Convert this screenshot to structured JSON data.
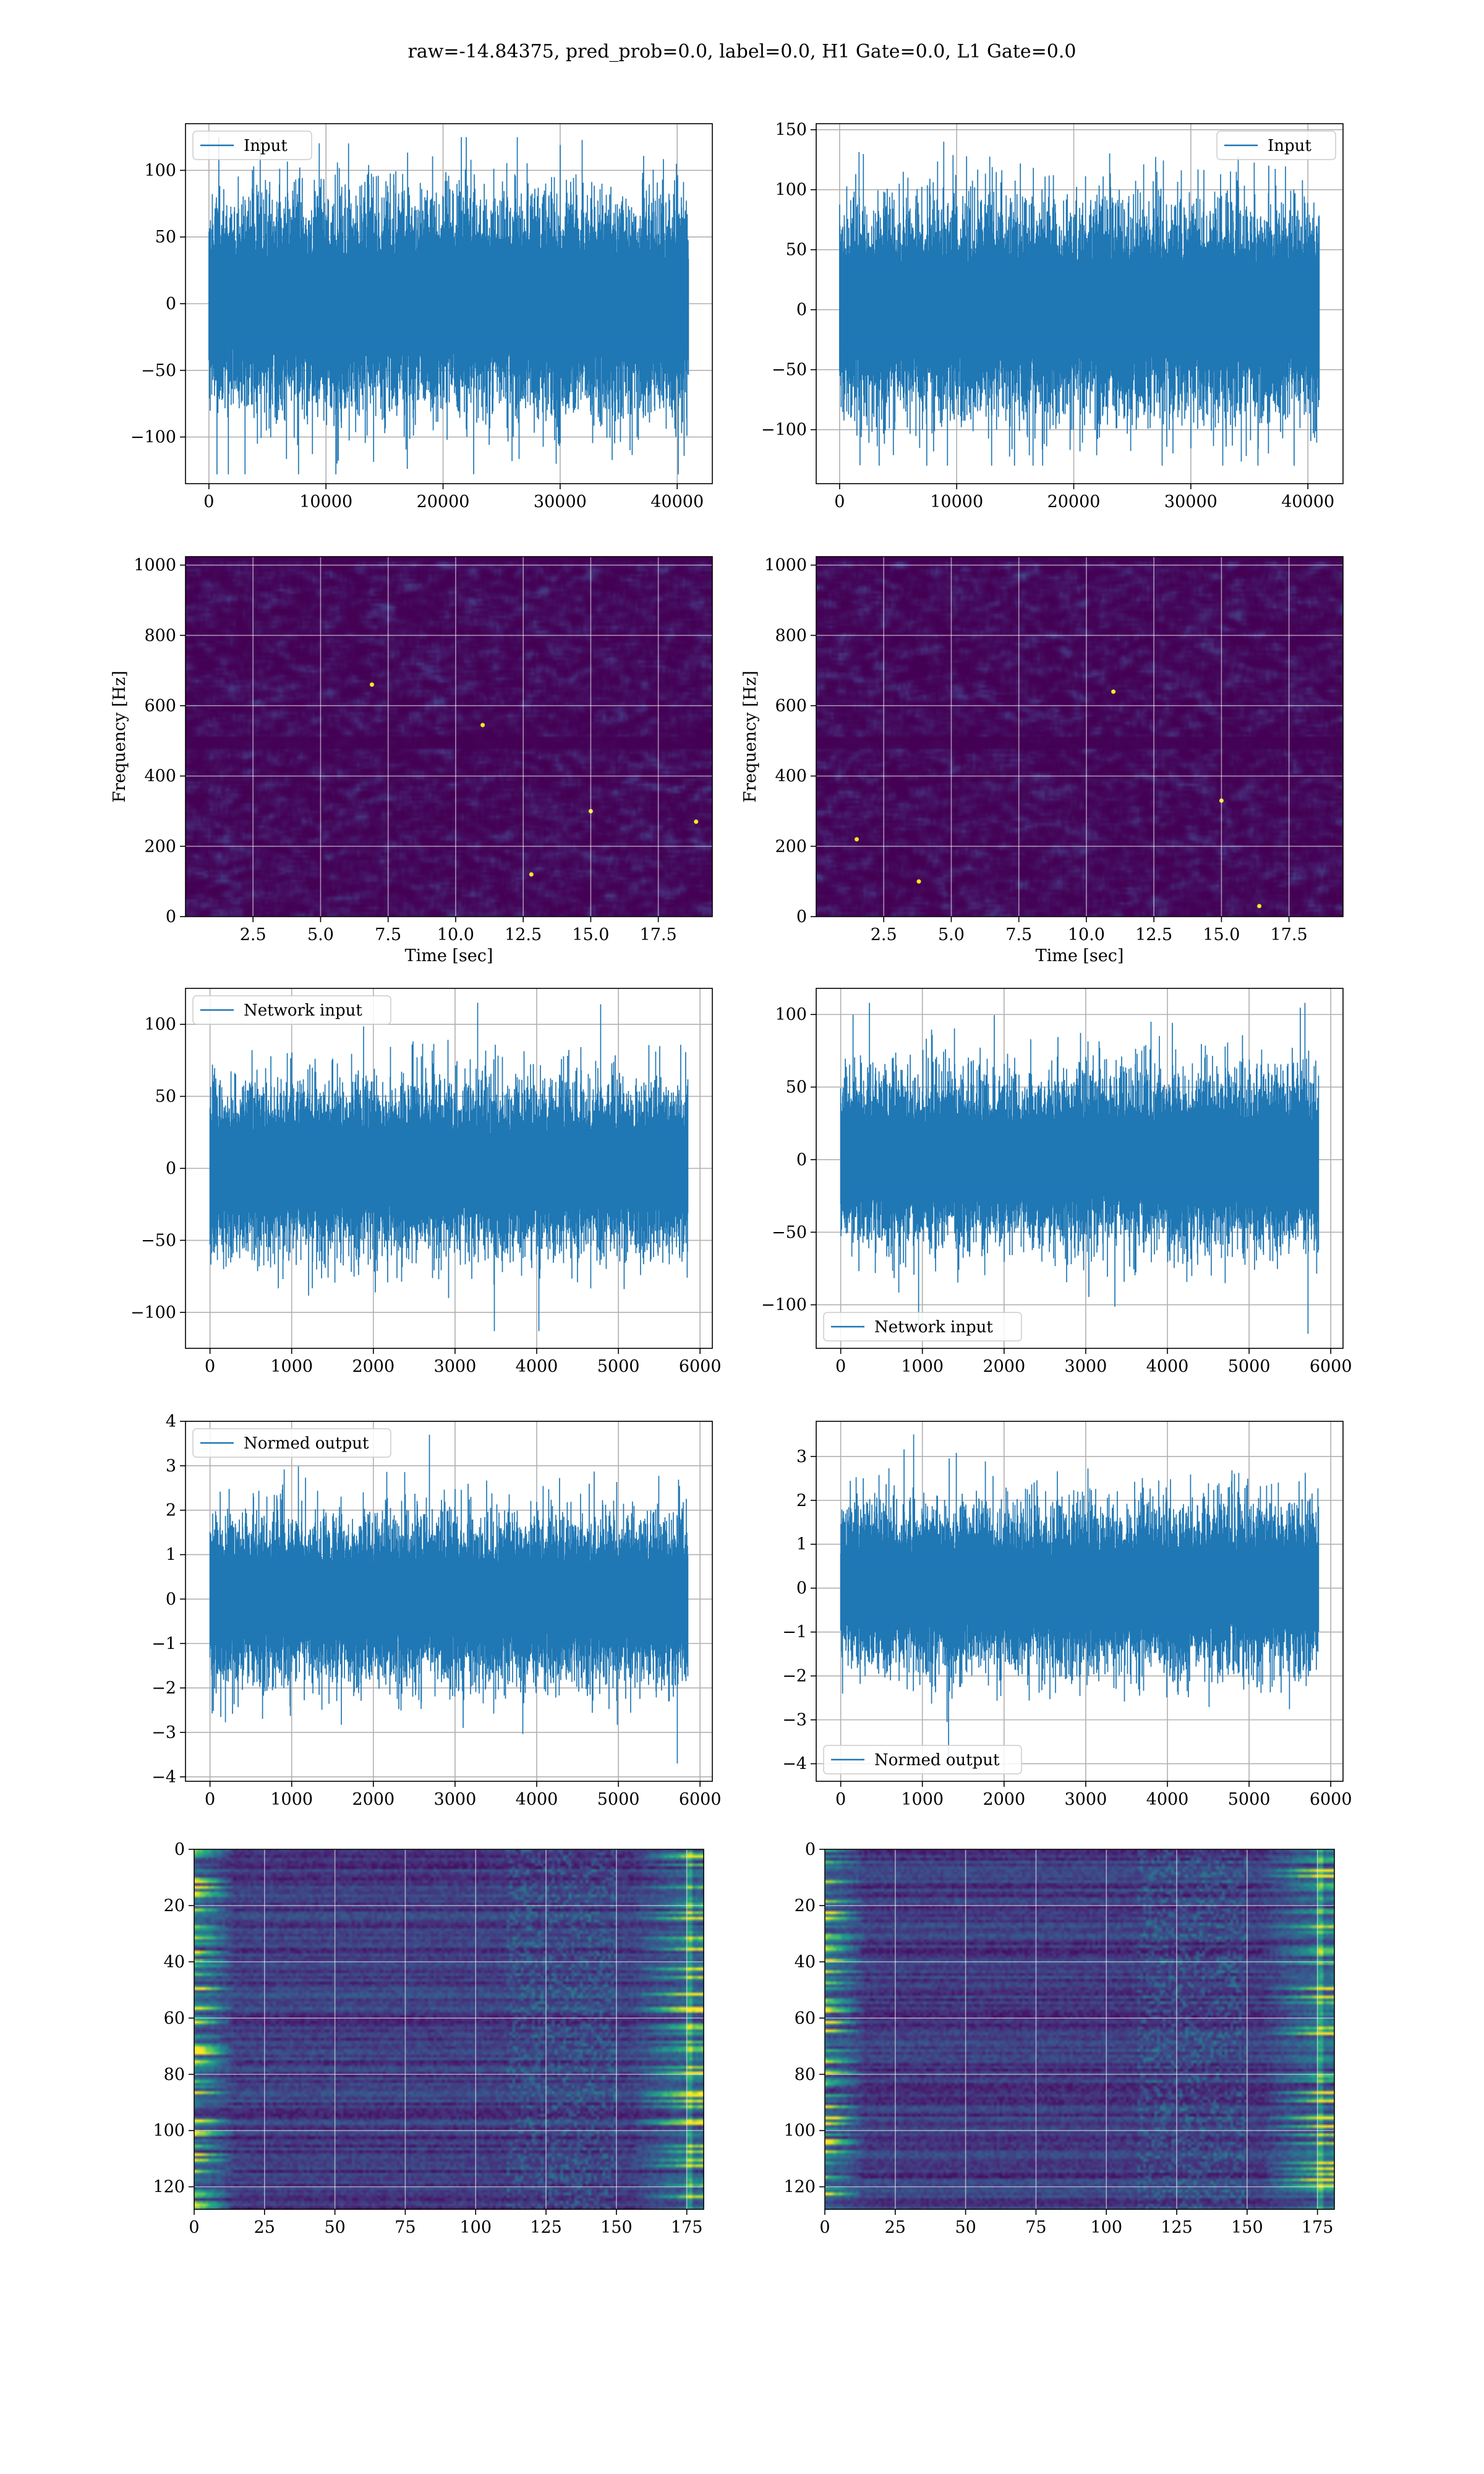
{
  "figure": {
    "suptitle": "raw=-14.84375, pred_prob=0.0, label=0.0, H1 Gate=0.0, L1 Gate=0.0"
  },
  "colors": {
    "series": "#1f77b4",
    "grid": "#b0b0b0",
    "viridis_dark": "#440154",
    "viridis_mid": "#3b528b",
    "viridis_teal": "#21918c",
    "viridis_green": "#5ec962",
    "viridis_yellow": "#fde725"
  },
  "chart_data": [
    {
      "id": "row1-left",
      "type": "line",
      "title": "",
      "xlabel": "",
      "ylabel": "",
      "series": [
        {
          "name": "Input",
          "x_range": [
            0,
            40960
          ],
          "envelope_typical": [
            -70,
            70
          ],
          "peaks_max": 125,
          "peaks_min": -128
        }
      ],
      "legend": "top-left",
      "grid": true,
      "xlim": [
        -2000,
        43000
      ],
      "ylim": [
        -135,
        135
      ],
      "xticks": [
        0,
        10000,
        20000,
        30000,
        40000
      ],
      "xtick_labels": [
        "0",
        "10000",
        "20000",
        "30000",
        "40000"
      ],
      "yticks": [
        -100,
        -50,
        0,
        50,
        100
      ],
      "ytick_labels": [
        "−100",
        "−50",
        "0",
        "50",
        "100"
      ]
    },
    {
      "id": "row1-right",
      "type": "line",
      "title": "",
      "xlabel": "",
      "ylabel": "",
      "series": [
        {
          "name": "Input",
          "x_range": [
            0,
            40960
          ],
          "envelope_typical": [
            -75,
            75
          ],
          "peaks_max": 140,
          "peaks_min": -130
        }
      ],
      "legend": "top-right",
      "grid": true,
      "xlim": [
        -2000,
        43000
      ],
      "ylim": [
        -145,
        155
      ],
      "xticks": [
        0,
        10000,
        20000,
        30000,
        40000
      ],
      "xtick_labels": [
        "0",
        "10000",
        "20000",
        "30000",
        "40000"
      ],
      "yticks": [
        -100,
        -50,
        0,
        50,
        100,
        150
      ],
      "ytick_labels": [
        "−100",
        "−50",
        "0",
        "50",
        "100",
        "150"
      ]
    },
    {
      "id": "row2-left",
      "type": "heatmap",
      "title": "",
      "xlabel": "Time [sec]",
      "ylabel": "Frequency [Hz]",
      "grid": true,
      "colormap": "viridis",
      "xlim": [
        0,
        19.5
      ],
      "ylim": [
        0,
        1024
      ],
      "xticks": [
        2.5,
        5.0,
        7.5,
        10.0,
        12.5,
        15.0,
        17.5
      ],
      "xtick_labels": [
        "2.5",
        "5.0",
        "7.5",
        "10.0",
        "12.5",
        "15.0",
        "17.5"
      ],
      "yticks": [
        0,
        200,
        400,
        600,
        800,
        1000
      ],
      "ytick_labels": [
        "0",
        "200",
        "400",
        "600",
        "800",
        "1000"
      ],
      "dark_band_hz": 500,
      "hot_spots": [
        {
          "t": 12.8,
          "f": 120
        },
        {
          "t": 6.9,
          "f": 660
        },
        {
          "t": 11.0,
          "f": 545
        },
        {
          "t": 18.9,
          "f": 270
        },
        {
          "t": 15.0,
          "f": 300
        }
      ]
    },
    {
      "id": "row2-right",
      "type": "heatmap",
      "title": "",
      "xlabel": "Time [sec]",
      "ylabel": "Frequency [Hz]",
      "grid": true,
      "colormap": "viridis",
      "xlim": [
        0,
        19.5
      ],
      "ylim": [
        0,
        1024
      ],
      "xticks": [
        2.5,
        5.0,
        7.5,
        10.0,
        12.5,
        15.0,
        17.5
      ],
      "xtick_labels": [
        "2.5",
        "5.0",
        "7.5",
        "10.0",
        "12.5",
        "15.0",
        "17.5"
      ],
      "yticks": [
        0,
        200,
        400,
        600,
        800,
        1000
      ],
      "ytick_labels": [
        "0",
        "200",
        "400",
        "600",
        "800",
        "1000"
      ],
      "dark_band_hz": 500,
      "hot_spots": [
        {
          "t": 16.4,
          "f": 30
        },
        {
          "t": 1.5,
          "f": 220
        },
        {
          "t": 3.8,
          "f": 100
        },
        {
          "t": 15.0,
          "f": 330
        },
        {
          "t": 11.0,
          "f": 640
        }
      ]
    },
    {
      "id": "row3-left",
      "type": "line",
      "title": "",
      "xlabel": "",
      "ylabel": "",
      "series": [
        {
          "name": "Network input",
          "x_range": [
            0,
            5850
          ],
          "envelope_typical": [
            -50,
            50
          ],
          "peaks_max": 115,
          "peaks_min": -113
        }
      ],
      "legend": "top-left",
      "grid": true,
      "xlim": [
        -300,
        6150
      ],
      "ylim": [
        -125,
        125
      ],
      "xticks": [
        0,
        1000,
        2000,
        3000,
        4000,
        5000,
        6000
      ],
      "xtick_labels": [
        "0",
        "1000",
        "2000",
        "3000",
        "4000",
        "5000",
        "6000"
      ],
      "yticks": [
        -100,
        -50,
        0,
        50,
        100
      ],
      "ytick_labels": [
        "−100",
        "−50",
        "0",
        "50",
        "100"
      ]
    },
    {
      "id": "row3-right",
      "type": "line",
      "title": "",
      "xlabel": "",
      "ylabel": "",
      "series": [
        {
          "name": "Network input",
          "x_range": [
            0,
            5850
          ],
          "envelope_typical": [
            -50,
            50
          ],
          "peaks_max": 108,
          "peaks_min": -120
        }
      ],
      "legend": "bottom-left",
      "grid": true,
      "xlim": [
        -300,
        6150
      ],
      "ylim": [
        -130,
        118
      ],
      "xticks": [
        0,
        1000,
        2000,
        3000,
        4000,
        5000,
        6000
      ],
      "xtick_labels": [
        "0",
        "1000",
        "2000",
        "3000",
        "4000",
        "5000",
        "6000"
      ],
      "yticks": [
        -100,
        -50,
        0,
        50,
        100
      ],
      "ytick_labels": [
        "−100",
        "−50",
        "0",
        "50",
        "100"
      ]
    },
    {
      "id": "row4-left",
      "type": "line",
      "title": "",
      "xlabel": "",
      "ylabel": "",
      "series": [
        {
          "name": "Normed output",
          "x_range": [
            0,
            5850
          ],
          "envelope_typical": [
            -1.6,
            1.6
          ],
          "peaks_max": 3.7,
          "peaks_min": -3.7
        }
      ],
      "legend": "top-left",
      "grid": true,
      "xlim": [
        -300,
        6150
      ],
      "ylim": [
        -4.1,
        4.0
      ],
      "xticks": [
        0,
        1000,
        2000,
        3000,
        4000,
        5000,
        6000
      ],
      "xtick_labels": [
        "0",
        "1000",
        "2000",
        "3000",
        "4000",
        "5000",
        "6000"
      ],
      "yticks": [
        -4,
        -3,
        -2,
        -1,
        0,
        1,
        2,
        3,
        4
      ],
      "ytick_labels": [
        "−4",
        "−3",
        "−2",
        "−1",
        "0",
        "1",
        "2",
        "3",
        "4"
      ]
    },
    {
      "id": "row4-right",
      "type": "line",
      "title": "",
      "xlabel": "",
      "ylabel": "",
      "series": [
        {
          "name": "Normed output",
          "x_range": [
            0,
            5850
          ],
          "envelope_typical": [
            -1.6,
            1.6
          ],
          "peaks_max": 3.5,
          "peaks_min": -3.9
        }
      ],
      "legend": "bottom-left",
      "grid": true,
      "xlim": [
        -300,
        6150
      ],
      "ylim": [
        -4.4,
        3.8
      ],
      "xticks": [
        0,
        1000,
        2000,
        3000,
        4000,
        5000,
        6000
      ],
      "xtick_labels": [
        "0",
        "1000",
        "2000",
        "3000",
        "4000",
        "5000",
        "6000"
      ],
      "yticks": [
        -4,
        -3,
        -2,
        -1,
        0,
        1,
        2,
        3
      ],
      "ytick_labels": [
        "−4",
        "−3",
        "−2",
        "−1",
        "0",
        "1",
        "2",
        "3"
      ]
    },
    {
      "id": "row5-left",
      "type": "heatmap",
      "title": "",
      "xlabel": "",
      "ylabel": "",
      "grid": true,
      "colormap": "viridis",
      "y_inverted": true,
      "xlim": [
        0,
        181
      ],
      "ylim": [
        128,
        0
      ],
      "xticks": [
        0,
        25,
        50,
        75,
        100,
        125,
        150,
        175
      ],
      "xtick_labels": [
        "0",
        "25",
        "50",
        "75",
        "100",
        "125",
        "150",
        "175"
      ],
      "yticks": [
        0,
        20,
        40,
        60,
        80,
        100,
        120
      ],
      "ytick_labels": [
        "0",
        "20",
        "40",
        "60",
        "80",
        "100",
        "120"
      ]
    },
    {
      "id": "row5-right",
      "type": "heatmap",
      "title": "",
      "xlabel": "",
      "ylabel": "",
      "grid": true,
      "colormap": "viridis",
      "y_inverted": true,
      "xlim": [
        0,
        181
      ],
      "ylim": [
        128,
        0
      ],
      "xticks": [
        0,
        25,
        50,
        75,
        100,
        125,
        150,
        175
      ],
      "xtick_labels": [
        "0",
        "25",
        "50",
        "75",
        "100",
        "125",
        "150",
        "175"
      ],
      "yticks": [
        0,
        20,
        40,
        60,
        80,
        100,
        120
      ],
      "ytick_labels": [
        "0",
        "20",
        "40",
        "60",
        "80",
        "100",
        "120"
      ]
    }
  ]
}
